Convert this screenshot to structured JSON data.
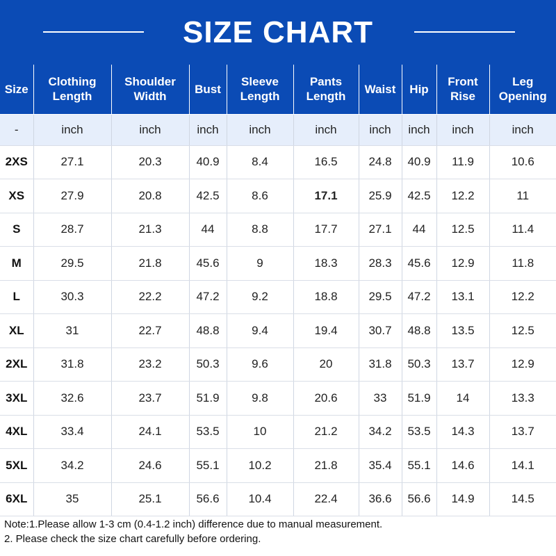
{
  "header": {
    "title": "SIZE CHART"
  },
  "table": {
    "headers": [
      "Size",
      "Clothing Length",
      "Shoulder Width",
      "Bust",
      "Sleeve Length",
      "Pants Length",
      "Waist",
      "Hip",
      "Front Rise",
      "Leg Opening"
    ],
    "units": [
      "-",
      "inch",
      "inch",
      "inch",
      "inch",
      "inch",
      "inch",
      "inch",
      "inch",
      "inch"
    ],
    "rows": [
      [
        "2XS",
        "27.1",
        "20.3",
        "40.9",
        "8.4",
        "16.5",
        "24.8",
        "40.9",
        "11.9",
        "10.6"
      ],
      [
        "XS",
        "27.9",
        "20.8",
        "42.5",
        "8.6",
        "17.1",
        "25.9",
        "42.5",
        "12.2",
        "11"
      ],
      [
        "S",
        "28.7",
        "21.3",
        "44",
        "8.8",
        "17.7",
        "27.1",
        "44",
        "12.5",
        "11.4"
      ],
      [
        "M",
        "29.5",
        "21.8",
        "45.6",
        "9",
        "18.3",
        "28.3",
        "45.6",
        "12.9",
        "11.8"
      ],
      [
        "L",
        "30.3",
        "22.2",
        "47.2",
        "9.2",
        "18.8",
        "29.5",
        "47.2",
        "13.1",
        "12.2"
      ],
      [
        "XL",
        "31",
        "22.7",
        "48.8",
        "9.4",
        "19.4",
        "30.7",
        "48.8",
        "13.5",
        "12.5"
      ],
      [
        "2XL",
        "31.8",
        "23.2",
        "50.3",
        "9.6",
        "20",
        "31.8",
        "50.3",
        "13.7",
        "12.9"
      ],
      [
        "3XL",
        "32.6",
        "23.7",
        "51.9",
        "9.8",
        "20.6",
        "33",
        "51.9",
        "14",
        "13.3"
      ],
      [
        "4XL",
        "33.4",
        "24.1",
        "53.5",
        "10",
        "21.2",
        "34.2",
        "53.5",
        "14.3",
        "13.7"
      ],
      [
        "5XL",
        "34.2",
        "24.6",
        "55.1",
        "10.2",
        "21.8",
        "35.4",
        "55.1",
        "14.6",
        "14.1"
      ],
      [
        "6XL",
        "35",
        "25.1",
        "56.6",
        "10.4",
        "22.4",
        "36.6",
        "56.6",
        "14.9",
        "14.5"
      ]
    ]
  },
  "notes": {
    "line1": "Note:1.Please allow 1-3 cm (0.4-1.2 inch) difference due to manual measurement.",
    "line2": "2. Please check the size chart carefully before ordering."
  },
  "colors": {
    "header_bg": "#0b4bb5",
    "unit_row_bg": "#e6eefb"
  }
}
